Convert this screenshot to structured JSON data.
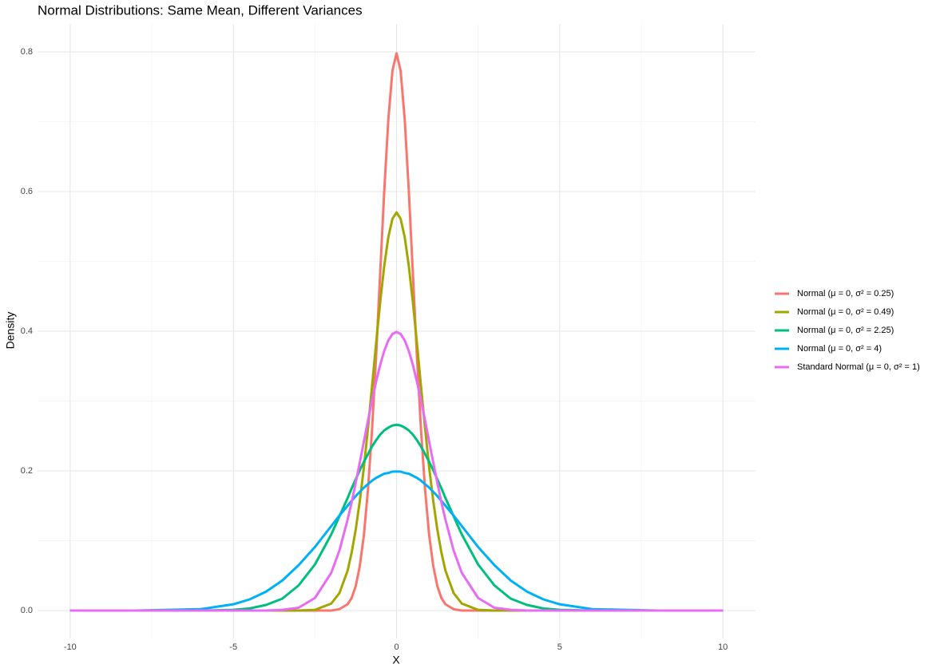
{
  "chart_data": {
    "type": "line",
    "title": "Normal Distributions: Same Mean, Different Variances",
    "x_label": "X",
    "y_label": "Density",
    "x": [
      -10,
      -8,
      -6,
      -5,
      -4.5,
      -4,
      -3.5,
      -3,
      -2.5,
      -2,
      -1.75,
      -1.5,
      -1.375,
      -1.25,
      -1.125,
      -1,
      -0.875,
      -0.75,
      -0.625,
      -0.5,
      -0.375,
      -0.25,
      -0.125,
      0,
      0.125,
      0.25,
      0.375,
      0.5,
      0.625,
      0.75,
      0.875,
      1,
      1.125,
      1.25,
      1.375,
      1.5,
      1.75,
      2,
      2.5,
      3,
      3.5,
      4,
      4.5,
      5,
      6,
      8,
      10
    ],
    "series": [
      {
        "name": "Normal (μ = 0, σ² = 0.25)",
        "color": "#F8766D",
        "values": [
          0,
          0,
          0,
          0,
          0,
          0,
          0,
          0,
          0,
          0,
          0.002,
          0.009,
          0.018,
          0.035,
          0.064,
          0.108,
          0.173,
          0.259,
          0.365,
          0.484,
          0.602,
          0.704,
          0.773,
          0.798,
          0.773,
          0.704,
          0.602,
          0.484,
          0.365,
          0.259,
          0.173,
          0.108,
          0.064,
          0.035,
          0.018,
          0.009,
          0.002,
          0,
          0,
          0,
          0,
          0,
          0,
          0,
          0,
          0,
          0
        ]
      },
      {
        "name": "Normal (μ = 0, σ² = 0.49)",
        "color": "#A3A500",
        "values": [
          0,
          0,
          0,
          0,
          0,
          0,
          0,
          0,
          0.001,
          0.01,
          0.025,
          0.057,
          0.083,
          0.116,
          0.157,
          0.205,
          0.261,
          0.321,
          0.383,
          0.442,
          0.494,
          0.535,
          0.561,
          0.57,
          0.561,
          0.535,
          0.494,
          0.442,
          0.383,
          0.321,
          0.261,
          0.205,
          0.157,
          0.116,
          0.083,
          0.057,
          0.025,
          0.01,
          0.001,
          0,
          0,
          0,
          0,
          0,
          0,
          0,
          0
        ]
      },
      {
        "name": "Normal (μ = 0, σ² = 2.25)",
        "color": "#00BF7D",
        "values": [
          0,
          0,
          0,
          0.001,
          0.003,
          0.008,
          0.017,
          0.036,
          0.066,
          0.109,
          0.135,
          0.161,
          0.175,
          0.188,
          0.201,
          0.213,
          0.224,
          0.235,
          0.244,
          0.252,
          0.258,
          0.262,
          0.265,
          0.266,
          0.265,
          0.262,
          0.258,
          0.252,
          0.244,
          0.235,
          0.224,
          0.213,
          0.201,
          0.188,
          0.175,
          0.161,
          0.135,
          0.109,
          0.066,
          0.036,
          0.017,
          0.008,
          0.003,
          0.001,
          0,
          0,
          0
        ]
      },
      {
        "name": "Normal (μ = 0, σ² = 4)",
        "color": "#00B0F6",
        "values": [
          0,
          0,
          0.002,
          0.009,
          0.016,
          0.027,
          0.043,
          0.065,
          0.091,
          0.121,
          0.136,
          0.15,
          0.157,
          0.164,
          0.17,
          0.176,
          0.181,
          0.186,
          0.19,
          0.193,
          0.196,
          0.197,
          0.199,
          0.199,
          0.199,
          0.197,
          0.196,
          0.193,
          0.19,
          0.186,
          0.181,
          0.176,
          0.17,
          0.164,
          0.157,
          0.15,
          0.136,
          0.121,
          0.091,
          0.065,
          0.043,
          0.027,
          0.016,
          0.009,
          0.002,
          0,
          0
        ]
      },
      {
        "name": "Standard Normal (μ = 0, σ² = 1)",
        "color": "#E76BF3",
        "values": [
          0,
          0,
          0,
          0,
          0,
          0,
          0.001,
          0.004,
          0.018,
          0.054,
          0.086,
          0.13,
          0.155,
          0.183,
          0.212,
          0.242,
          0.272,
          0.301,
          0.328,
          0.352,
          0.372,
          0.387,
          0.396,
          0.399,
          0.396,
          0.387,
          0.372,
          0.352,
          0.328,
          0.301,
          0.272,
          0.242,
          0.212,
          0.183,
          0.155,
          0.13,
          0.086,
          0.054,
          0.018,
          0.004,
          0.001,
          0,
          0,
          0,
          0,
          0,
          0
        ]
      }
    ],
    "xlim": [
      -11,
      11
    ],
    "ylim": [
      -0.04,
      0.84
    ],
    "xticks": [
      -10,
      -5,
      0,
      5,
      10
    ],
    "yticks": [
      {
        "value": 0,
        "label": "0.0"
      },
      {
        "value": 0.2,
        "label": "0.2"
      },
      {
        "value": 0.4,
        "label": "0.4"
      },
      {
        "value": 0.6,
        "label": "0.6"
      },
      {
        "value": 0.8,
        "label": "0.8"
      }
    ],
    "x_minor_grid": [
      -7.5,
      -2.5,
      2.5,
      7.5
    ],
    "y_minor_grid": [
      0.1,
      0.3,
      0.5,
      0.7
    ],
    "grid": true,
    "legend": "right"
  }
}
